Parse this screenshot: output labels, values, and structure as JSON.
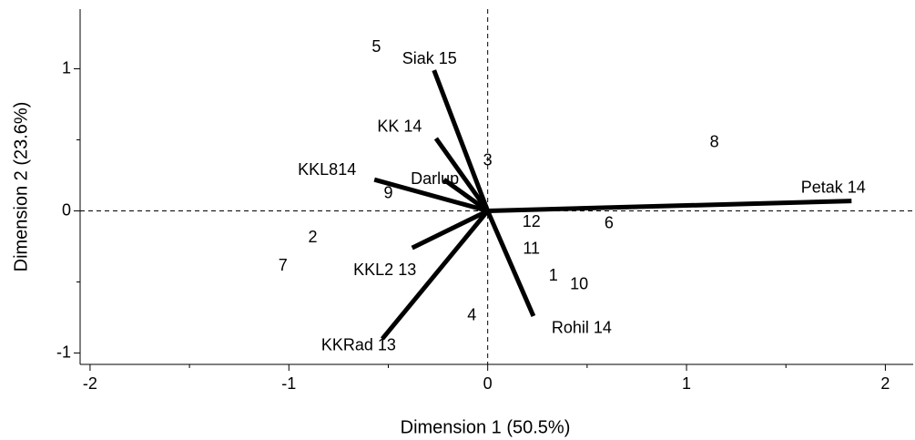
{
  "chart_data": {
    "type": "biplot",
    "x_label": "Dimension 1 (50.5%)",
    "y_label": "Dimension 2 (23.6%)",
    "xlim": [
      -2.05,
      2.14
    ],
    "ylim": [
      -1.08,
      1.42
    ],
    "xticks": [
      -2,
      -1,
      0,
      1,
      2
    ],
    "yticks": [
      -1,
      0,
      1
    ],
    "x_minor_ticks": [
      -1.5,
      -0.5,
      0.5,
      1.5
    ],
    "y_minor_ticks": [
      -0.5,
      0.5
    ],
    "points": {
      "labels": [
        "5",
        "3",
        "8",
        "9",
        "2",
        "7",
        "12",
        "6",
        "11",
        "1",
        "10",
        "4"
      ],
      "x": [
        -0.56,
        0.0,
        1.14,
        -0.5,
        -0.88,
        -1.03,
        0.22,
        0.61,
        0.22,
        0.33,
        0.46,
        -0.08
      ],
      "y": [
        1.15,
        0.35,
        0.48,
        0.12,
        -0.19,
        -0.39,
        -0.08,
        -0.09,
        -0.27,
        -0.46,
        -0.52,
        -0.74
      ]
    },
    "vectors": {
      "names": [
        "Siak 15",
        "KK 14",
        "KKL814",
        "Darlup",
        "Petak 14",
        "KKL2 13",
        "KKRad 13",
        "Rohil 14"
      ],
      "x": [
        -0.27,
        -0.26,
        -0.57,
        -0.22,
        1.83,
        -0.38,
        -0.53,
        0.23
      ],
      "y": [
        0.99,
        0.51,
        0.22,
        0.22,
        0.07,
        -0.26,
        -0.9,
        -0.74
      ]
    }
  }
}
